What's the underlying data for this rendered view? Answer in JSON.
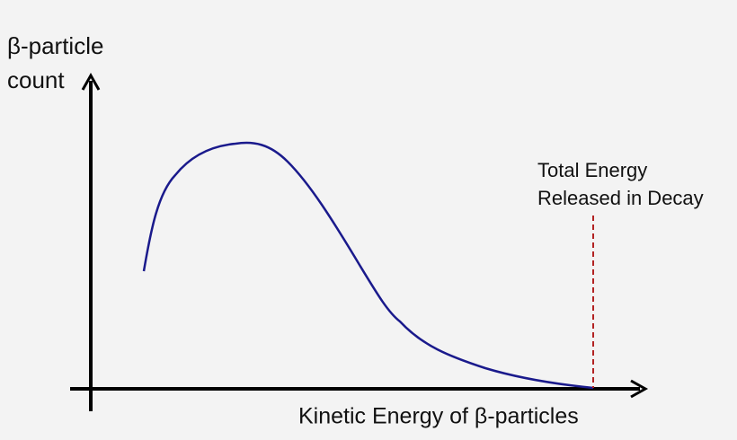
{
  "y_axis_label": {
    "lines": [
      "β-particle",
      "count"
    ]
  },
  "x_axis_label": "Kinetic Energy of β-particles",
  "annotation": {
    "lines": [
      "Total Energy",
      "Released in Decay"
    ]
  }
}
